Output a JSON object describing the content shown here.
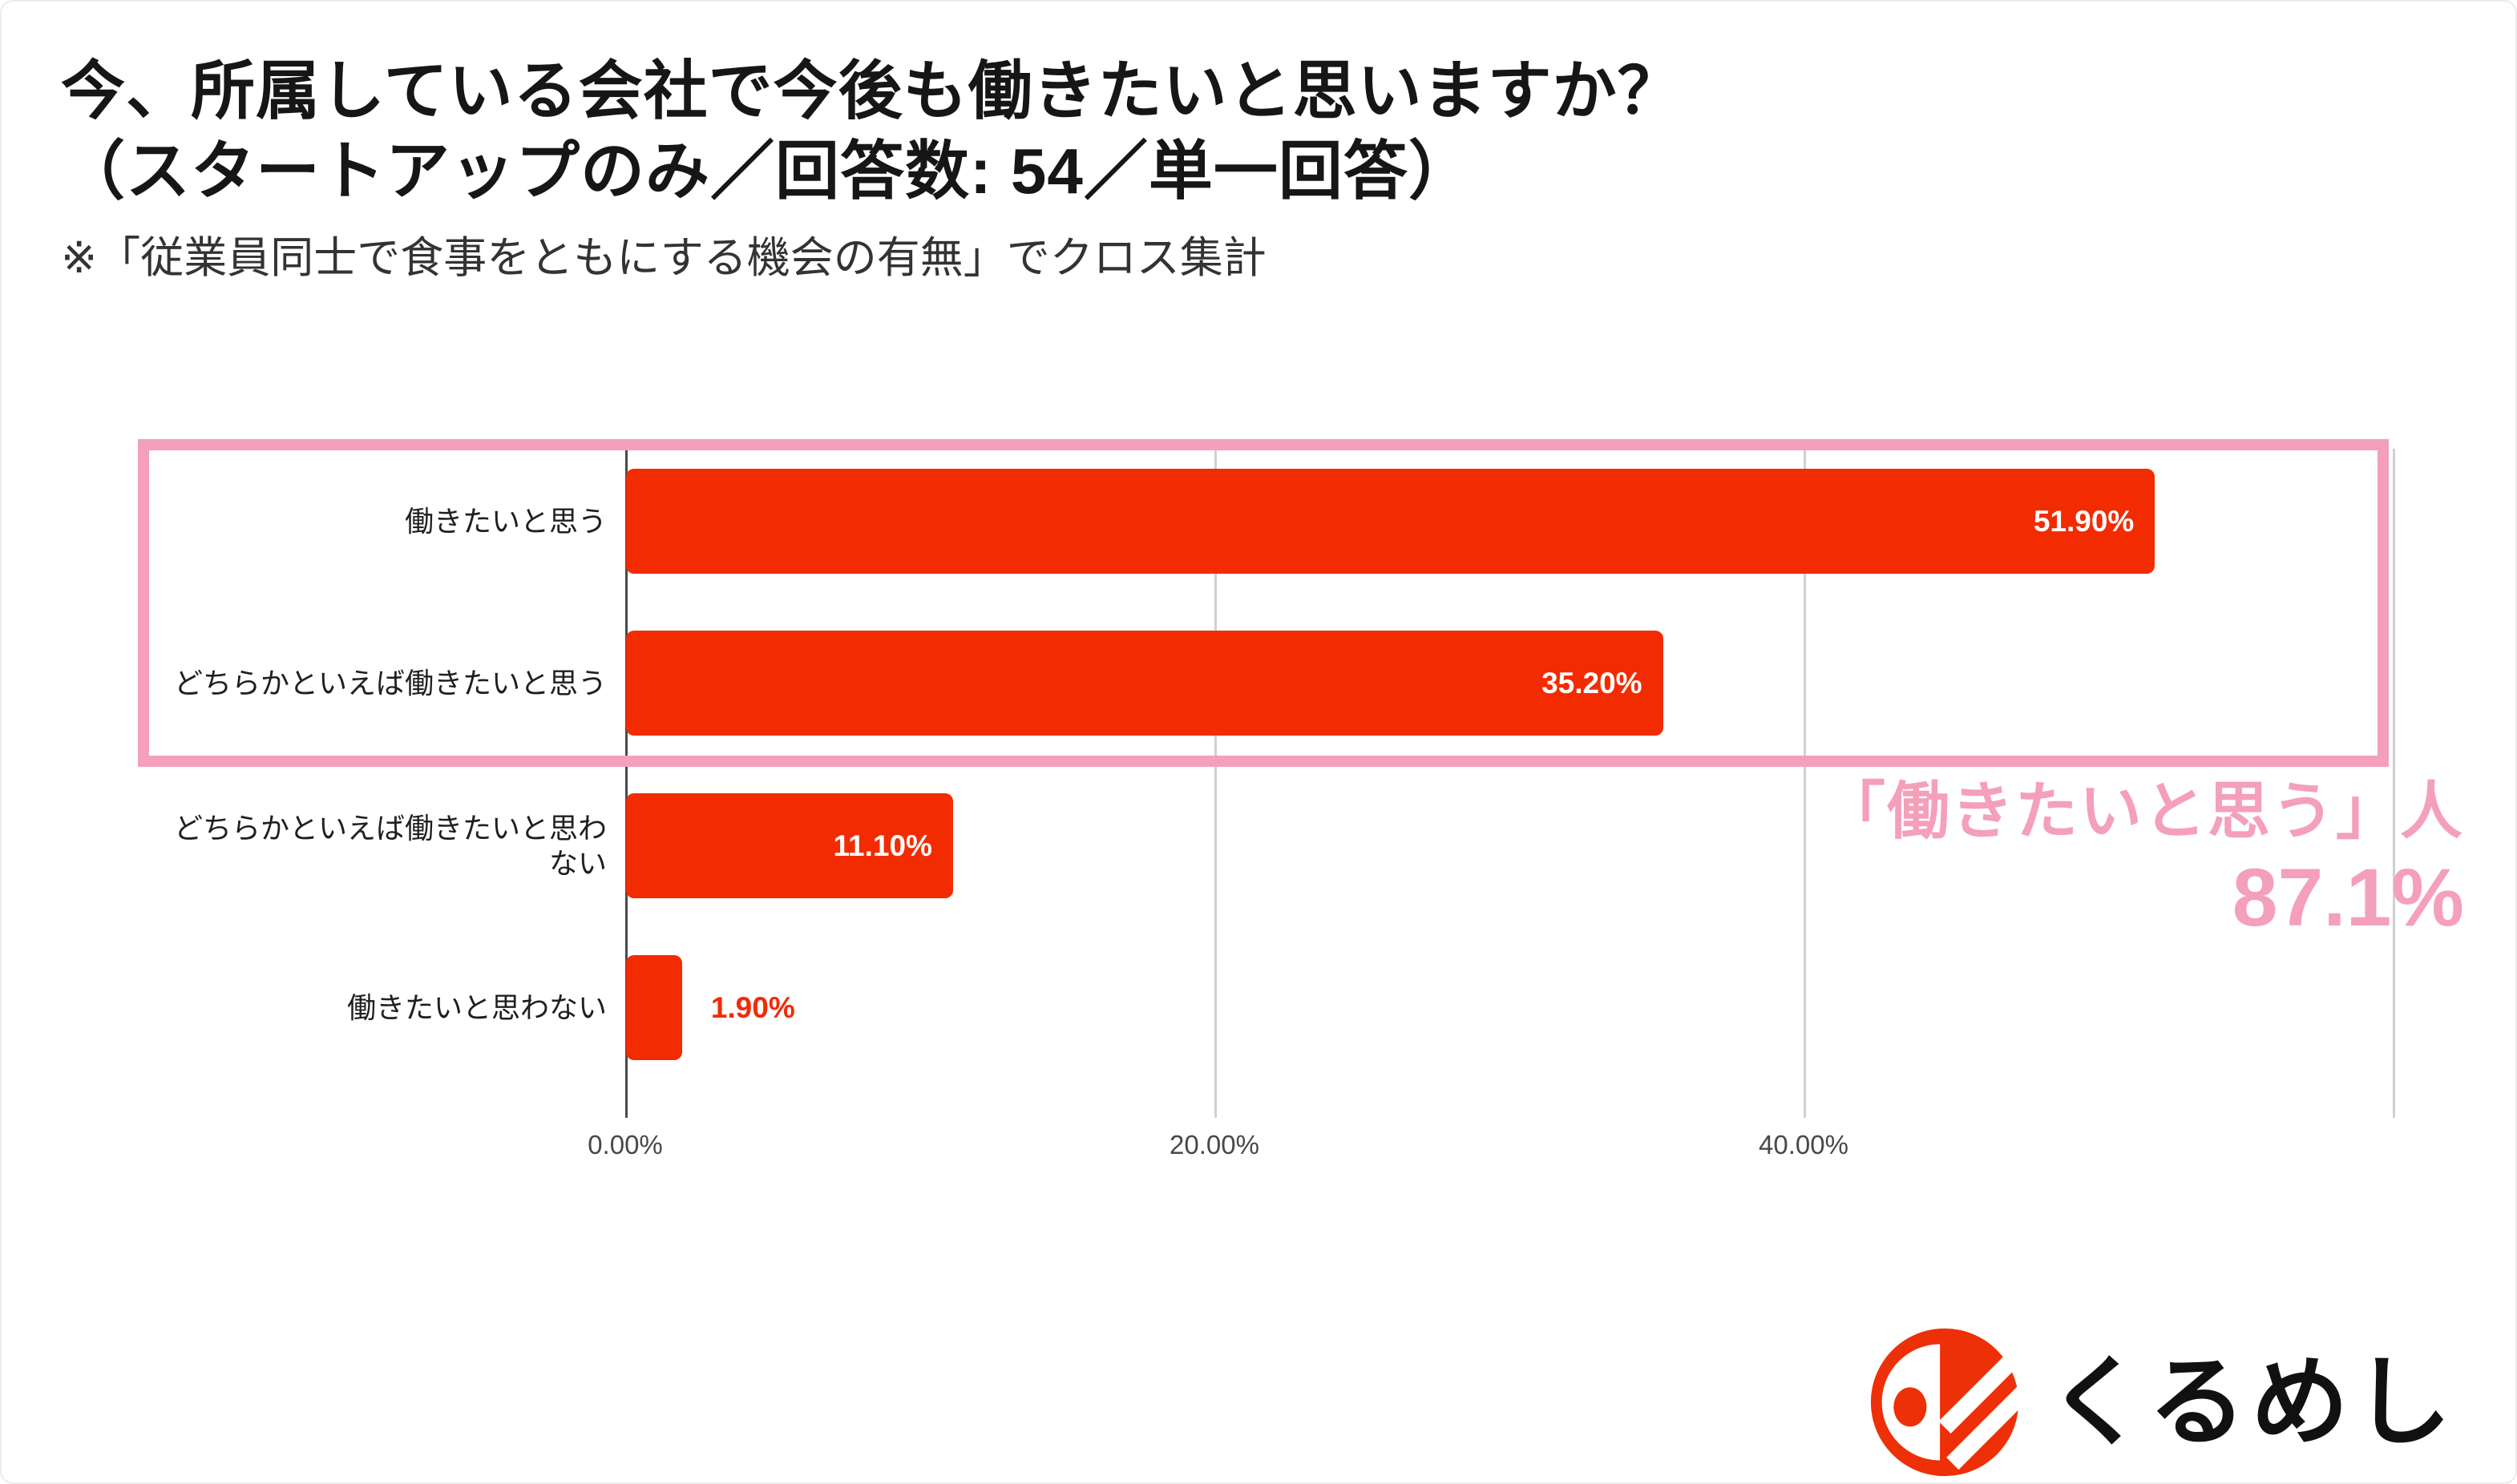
{
  "header": {
    "title_line1": "今、所属している会社で今後も働きたいと思いますか？",
    "title_line2": "（スタートアップのみ／回答数: 54／単一回答）",
    "note": "※「従業員同士で食事をともにする機会の有無」でクロス集計"
  },
  "chart_data": {
    "type": "bar",
    "orientation": "horizontal",
    "title": "今、所属している会社で今後も働きたいと思いますか？（スタートアップのみ／回答数: 54／単一回答）",
    "categories": [
      "働きたいと思う",
      "どちらかといえば働きたいと思う",
      "どちらかといえば働きたいと思わない",
      "働きたいと思わない"
    ],
    "values": [
      51.9,
      35.2,
      11.1,
      1.9
    ],
    "value_labels": [
      "51.90%",
      "35.20%",
      "11.10%",
      "1.90%"
    ],
    "xlim": [
      0,
      60
    ],
    "x_axis": {
      "ticks": [
        {
          "value": 0,
          "label": "0.00%"
        },
        {
          "value": 20,
          "label": "20.00%"
        },
        {
          "value": 40,
          "label": "40.00%"
        }
      ],
      "gridline_values": [
        20,
        40,
        60
      ]
    },
    "grid": "vertical",
    "legend": "none",
    "colors": {
      "bar": "#f32b00",
      "value_label_inside": "#ffffff",
      "value_label_outside": "#f32b00",
      "gridline": "#d0d0d0",
      "axis_line": "#4a4a4a",
      "tick_label": "#484848",
      "category_label": "#1f1f1f"
    },
    "highlight": {
      "box_color": "#f4a0ba",
      "boxed_categories": [
        "働きたいと思う",
        "どちらかといえば働きたいと思う"
      ],
      "annotation_line1": "「働きたいと思う」人",
      "annotation_line2": "87.1%",
      "annotation_color": "#f4a0ba"
    }
  },
  "logo": {
    "text": "くるめし",
    "icon": "kurumeshi-brand-icon",
    "color": "#ee3008",
    "text_color": "#111111"
  }
}
